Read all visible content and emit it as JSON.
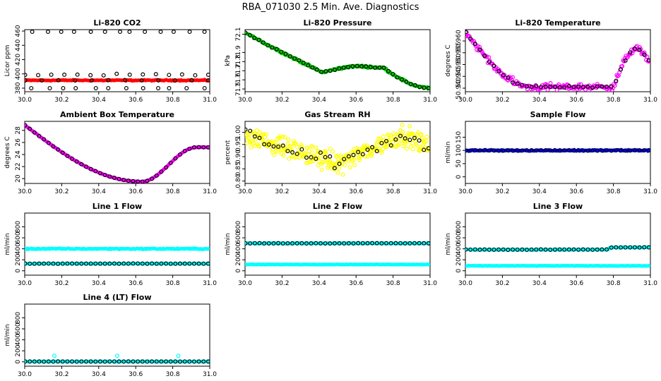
{
  "title": "RBA_071030  2.5 Min. Ave. Diagnostics",
  "colors": {
    "red": "#ff0000",
    "green": "#00cc00",
    "magenta": "#ff00ff",
    "yellow": "#ffff00",
    "blue": "#0000ff",
    "cyan": "#00ffff",
    "black": "#000000"
  },
  "chart_data": [
    {
      "type": "scatter",
      "title": "Li-820 CO2",
      "ylabel": "Licor ppm",
      "xlim": [
        30.0,
        31.0
      ],
      "ylim": [
        375,
        462
      ],
      "xticks": [
        "30.0",
        "30.2",
        "30.4",
        "30.6",
        "30.8",
        "31.0"
      ],
      "yticks": [
        {
          "v": 380,
          "label": "380"
        },
        {
          "v": 400,
          "label": "400"
        },
        {
          "v": 420,
          "label": "420"
        },
        {
          "v": 440,
          "label": "440"
        },
        {
          "v": 460,
          "label": "460"
        }
      ],
      "series": [
        {
          "name": "raw",
          "color": "red",
          "marker": "dot",
          "model": "flat",
          "params": [
            391,
            0.6,
            0
          ],
          "n": 150
        },
        {
          "name": "avg-low",
          "color": "black",
          "marker": "circle",
          "model": "flat",
          "params": [
            391,
            0.3,
            0
          ],
          "n": 12
        },
        {
          "name": "avg-mid",
          "color": "black",
          "marker": "circle",
          "model": "flat",
          "params": [
            399,
            1,
            0
          ],
          "n": 15
        },
        {
          "name": "avg-outlier-high",
          "color": "black",
          "marker": "circle",
          "model": "flat",
          "params": [
            459,
            0,
            0
          ],
          "n": 13
        },
        {
          "name": "avg-outlier-low",
          "color": "black",
          "marker": "circle",
          "model": "flat",
          "params": [
            380,
            0,
            0
          ],
          "n": 12
        }
      ]
    },
    {
      "type": "scatter",
      "title": "Li-820 Pressure",
      "ylabel": "kPa",
      "xlim": [
        30.0,
        31.0
      ],
      "ylim": [
        71.47,
        72.15
      ],
      "xticks": [
        "30.0",
        "30.2",
        "30.4",
        "30.6",
        "30.8",
        "31.0"
      ],
      "yticks": [
        {
          "v": 71.5,
          "label": "71.5"
        },
        {
          "v": 71.6,
          "label": "71.6"
        },
        {
          "v": 71.7,
          "label": "71.7"
        },
        {
          "v": 71.8,
          "label": "71.8"
        },
        {
          "v": 71.9,
          "label": "71.9"
        },
        {
          "v": 72.1,
          "label": "72.1"
        }
      ],
      "series": [
        {
          "name": "raw",
          "color": "green",
          "marker": "dot",
          "model": "pressure",
          "params": [
            0,
            0.01,
            0
          ],
          "n": 260
        },
        {
          "name": "avg",
          "color": "black",
          "marker": "circle",
          "model": "pressure",
          "params": [
            0,
            0.004,
            0
          ],
          "n": 42
        }
      ]
    },
    {
      "type": "scatter",
      "title": "Li-820 Temperature",
      "ylabel": "degrees C",
      "xlim": [
        30.0,
        31.0
      ],
      "ylim": [
        50.9385,
        50.9648
      ],
      "xticks": [
        "30.0",
        "30.2",
        "30.4",
        "30.6",
        "30.8",
        "31.0"
      ],
      "yticks": [
        {
          "v": 50.94,
          "label": "50.940"
        },
        {
          "v": 50.945,
          "label": "50.945"
        },
        {
          "v": 50.95,
          "label": "50.950"
        },
        {
          "v": 50.955,
          "label": "50.955"
        },
        {
          "v": 50.96,
          "label": "50.960"
        }
      ],
      "series": [
        {
          "name": "raw",
          "color": "magenta",
          "marker": "circle",
          "model": "licortemp",
          "params": [
            0,
            0.0012,
            0
          ],
          "n": 200
        },
        {
          "name": "avg",
          "color": "black",
          "marker": "circle",
          "model": "licortemp",
          "params": [
            0,
            0.0004,
            0
          ],
          "n": 40
        }
      ]
    },
    {
      "type": "scatter",
      "title": "Ambient Box Temperature",
      "ylabel": "degrees C",
      "xlim": [
        30.0,
        31.0
      ],
      "ylim": [
        19.2,
        29.5
      ],
      "xticks": [
        "30.0",
        "30.2",
        "30.4",
        "30.6",
        "30.8",
        "31.0"
      ],
      "yticks": [
        {
          "v": 20,
          "label": "20"
        },
        {
          "v": 22,
          "label": "22"
        },
        {
          "v": 24,
          "label": "24"
        },
        {
          "v": 26,
          "label": "26"
        },
        {
          "v": 28,
          "label": "28"
        }
      ],
      "series": [
        {
          "name": "raw",
          "color": "magenta",
          "marker": "dot",
          "model": "boxtemp",
          "params": [
            0,
            0.03,
            0
          ],
          "n": 220
        },
        {
          "name": "avg",
          "color": "black",
          "marker": "circle",
          "model": "boxtemp",
          "params": [
            0,
            0.02,
            0
          ],
          "n": 40
        }
      ]
    },
    {
      "type": "scatter",
      "title": "Gas Stream RH",
      "ylabel": "percent",
      "xlim": [
        30.0,
        31.0
      ],
      "ylim": [
        0.79,
        1.045
      ],
      "xticks": [
        "30.0",
        "30.2",
        "30.4",
        "30.6",
        "30.8",
        "31.0"
      ],
      "yticks": [
        {
          "v": 0.8,
          "label": "0.80"
        },
        {
          "v": 0.85,
          "label": "0.85"
        },
        {
          "v": 0.9,
          "label": "0.90"
        },
        {
          "v": 0.95,
          "label": "0.95"
        },
        {
          "v": 1.0,
          "label": "1.00"
        }
      ],
      "series": [
        {
          "name": "raw",
          "color": "yellow",
          "marker": "circle",
          "model": "rh",
          "params": [
            0,
            0.035,
            0
          ],
          "n": 320
        },
        {
          "name": "avg",
          "color": "black",
          "marker": "circle",
          "model": "rh",
          "params": [
            0,
            0.02,
            0
          ],
          "n": 40
        }
      ]
    },
    {
      "type": "scatter",
      "title": "Sample Flow",
      "ylabel": "ml/min",
      "xlim": [
        30.0,
        31.0
      ],
      "ylim": [
        -25,
        210
      ],
      "xticks": [
        "30.0",
        "30.2",
        "30.4",
        "30.6",
        "30.8",
        "31.0"
      ],
      "yticks": [
        {
          "v": 0,
          "label": "0"
        },
        {
          "v": 50,
          "label": "50"
        },
        {
          "v": 100,
          "label": "100"
        },
        {
          "v": 150,
          "label": "150"
        }
      ],
      "series": [
        {
          "name": "raw",
          "color": "blue",
          "marker": "dot",
          "model": "flat",
          "params": [
            100,
            2,
            0
          ],
          "n": 180
        },
        {
          "name": "avg",
          "color": "black",
          "marker": "circle",
          "model": "flat",
          "params": [
            100,
            1,
            0
          ],
          "n": 40
        }
      ]
    },
    {
      "type": "scatter",
      "title": "Line 1 Flow",
      "ylabel": "ml/min",
      "xlim": [
        30.0,
        31.0
      ],
      "ylim": [
        -80,
        1050
      ],
      "xticks": [
        "30.0",
        "30.2",
        "30.4",
        "30.6",
        "30.8",
        "31.0"
      ],
      "yticks": [
        {
          "v": 0,
          "label": "0"
        },
        {
          "v": 200,
          "label": "200"
        },
        {
          "v": 400,
          "label": "400"
        },
        {
          "v": 600,
          "label": "600"
        },
        {
          "v": 800,
          "label": "800"
        }
      ],
      "series": [
        {
          "name": "raw-high",
          "color": "cyan",
          "marker": "dot",
          "model": "flat",
          "params": [
            400,
            8,
            0
          ],
          "n": 180
        },
        {
          "name": "raw-low",
          "color": "cyan",
          "marker": "dot",
          "model": "flat",
          "params": [
            130,
            3,
            0
          ],
          "n": 150
        },
        {
          "name": "avg",
          "color": "black",
          "marker": "circle",
          "model": "flat",
          "params": [
            130,
            2,
            0
          ],
          "n": 40
        }
      ]
    },
    {
      "type": "scatter",
      "title": "Line 2 Flow",
      "ylabel": "ml/min",
      "xlim": [
        30.0,
        31.0
      ],
      "ylim": [
        -80,
        1050
      ],
      "xticks": [
        "30.0",
        "30.2",
        "30.4",
        "30.6",
        "30.8",
        "31.0"
      ],
      "yticks": [
        {
          "v": 0,
          "label": "0"
        },
        {
          "v": 200,
          "label": "200"
        },
        {
          "v": 400,
          "label": "400"
        },
        {
          "v": 600,
          "label": "600"
        },
        {
          "v": 800,
          "label": "800"
        }
      ],
      "series": [
        {
          "name": "raw-high",
          "color": "cyan",
          "marker": "dot",
          "model": "flat",
          "params": [
            500,
            6,
            0
          ],
          "n": 160
        },
        {
          "name": "raw-low",
          "color": "cyan",
          "marker": "dot",
          "model": "flat",
          "params": [
            115,
            3,
            0
          ],
          "n": 160
        },
        {
          "name": "avg",
          "color": "black",
          "marker": "circle",
          "model": "flat",
          "params": [
            500,
            3,
            0
          ],
          "n": 40
        }
      ]
    },
    {
      "type": "scatter",
      "title": "Line 3 Flow",
      "ylabel": "ml/min",
      "xlim": [
        30.0,
        31.0
      ],
      "ylim": [
        -80,
        1050
      ],
      "xticks": [
        "30.0",
        "30.2",
        "30.4",
        "30.6",
        "30.8",
        "31.0"
      ],
      "yticks": [
        {
          "v": 0,
          "label": "0"
        },
        {
          "v": 200,
          "label": "200"
        },
        {
          "v": 400,
          "label": "400"
        },
        {
          "v": 600,
          "label": "600"
        },
        {
          "v": 800,
          "label": "800"
        }
      ],
      "series": [
        {
          "name": "raw-high",
          "color": "cyan",
          "marker": "dot",
          "model": "flat",
          "params": [
            385,
            6,
            40
          ],
          "n": 160
        },
        {
          "name": "raw-low",
          "color": "cyan",
          "marker": "dot",
          "model": "flat",
          "params": [
            90,
            3,
            0
          ],
          "n": 160
        },
        {
          "name": "avg",
          "color": "black",
          "marker": "circle",
          "model": "flat",
          "params": [
            385,
            3,
            40
          ],
          "n": 40
        }
      ]
    },
    {
      "type": "scatter",
      "title": "Line 4 (LT) Flow",
      "ylabel": "ml/min",
      "xlim": [
        30.0,
        31.0
      ],
      "ylim": [
        -80,
        1050
      ],
      "xticks": [
        "30.0",
        "30.2",
        "30.4",
        "30.6",
        "30.8",
        "31.0"
      ],
      "yticks": [
        {
          "v": 0,
          "label": "0"
        },
        {
          "v": 200,
          "label": "200"
        },
        {
          "v": 400,
          "label": "400"
        },
        {
          "v": 600,
          "label": "600"
        },
        {
          "v": 800,
          "label": "800"
        }
      ],
      "series": [
        {
          "name": "raw",
          "color": "cyan",
          "marker": "dot",
          "model": "flat",
          "params": [
            5,
            2,
            0
          ],
          "n": 160
        },
        {
          "name": "spikes",
          "color": "cyan",
          "marker": "circle",
          "model": "flat",
          "params": [
            110,
            0,
            0
          ],
          "n": 3
        },
        {
          "name": "avg",
          "color": "black",
          "marker": "circle",
          "model": "flat",
          "params": [
            5,
            1,
            0
          ],
          "n": 40
        }
      ]
    }
  ]
}
